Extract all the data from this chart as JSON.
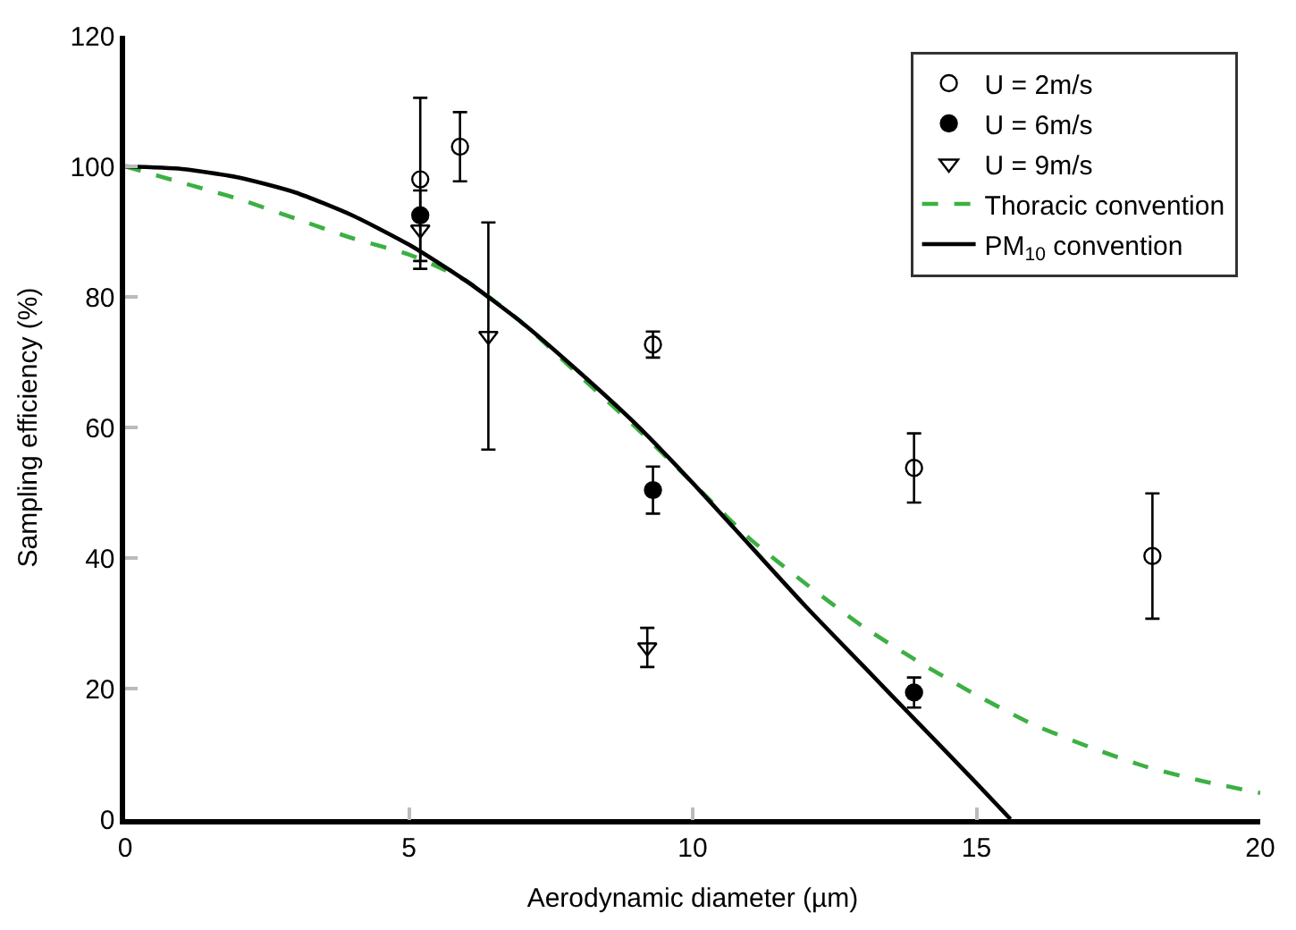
{
  "chart_data": {
    "type": "scatter",
    "xlabel": "Aerodynamic diameter (µm)",
    "ylabel": "Sampling efficiency (%)",
    "xlim": [
      0,
      20
    ],
    "xticks": [
      0,
      5,
      10,
      15,
      20
    ],
    "ylim": [
      0,
      120
    ],
    "yticks": [
      0,
      20,
      40,
      60,
      80,
      100,
      120
    ],
    "legend": "top right",
    "series": [
      {
        "name": "U = 2m/s",
        "marker": "circle",
        "color": "#000000",
        "x": [
          5.2,
          5.9,
          9.3,
          13.9,
          18.1
        ],
        "values": [
          98,
          103,
          72.7,
          53.8,
          40.3
        ],
        "errors": [
          12.5,
          5.3,
          2,
          5.3,
          9.6
        ]
      },
      {
        "name": "U = 6m/s",
        "marker": "circle",
        "color": "#000000",
        "x": [
          5.2,
          9.3,
          13.9
        ],
        "values": [
          92.5,
          50.4,
          19.4
        ],
        "errors": [
          null,
          3.6,
          2.3
        ]
      },
      {
        "name": "U = 9m/s",
        "marker": "triangle",
        "color": "#000000",
        "x": [
          5.2,
          6.4,
          9.2
        ],
        "values": [
          90.3,
          74,
          26.3
        ],
        "errors": [
          6,
          17.4,
          3
        ]
      },
      {
        "name": "Thoracic convention",
        "type": "line",
        "line_style": "dashed",
        "color": "#3cb043",
        "x": [
          0,
          1,
          2,
          3,
          4,
          5,
          6,
          7,
          8,
          9,
          10,
          11,
          12,
          13,
          14,
          15,
          16,
          17,
          18,
          19,
          20
        ],
        "values": [
          100,
          97.5,
          95,
          92,
          89,
          86.5,
          82.5,
          76,
          68,
          60,
          51.5,
          43,
          36,
          29.5,
          24,
          19,
          14.5,
          11,
          8,
          5.8,
          4
        ]
      },
      {
        "name": "PM$_{10}$ convention",
        "type": "line",
        "line_style": "solid",
        "color": "#000000",
        "x": [
          0,
          1,
          2,
          3,
          4,
          5,
          6,
          7,
          8,
          9,
          10,
          11,
          12,
          13,
          14,
          15,
          15.6
        ],
        "values": [
          100,
          99.6,
          98.3,
          96,
          92.5,
          88,
          82.5,
          76,
          68.5,
          60.5,
          51.5,
          42,
          32.5,
          23.5,
          14.5,
          5.5,
          0
        ]
      }
    ]
  }
}
